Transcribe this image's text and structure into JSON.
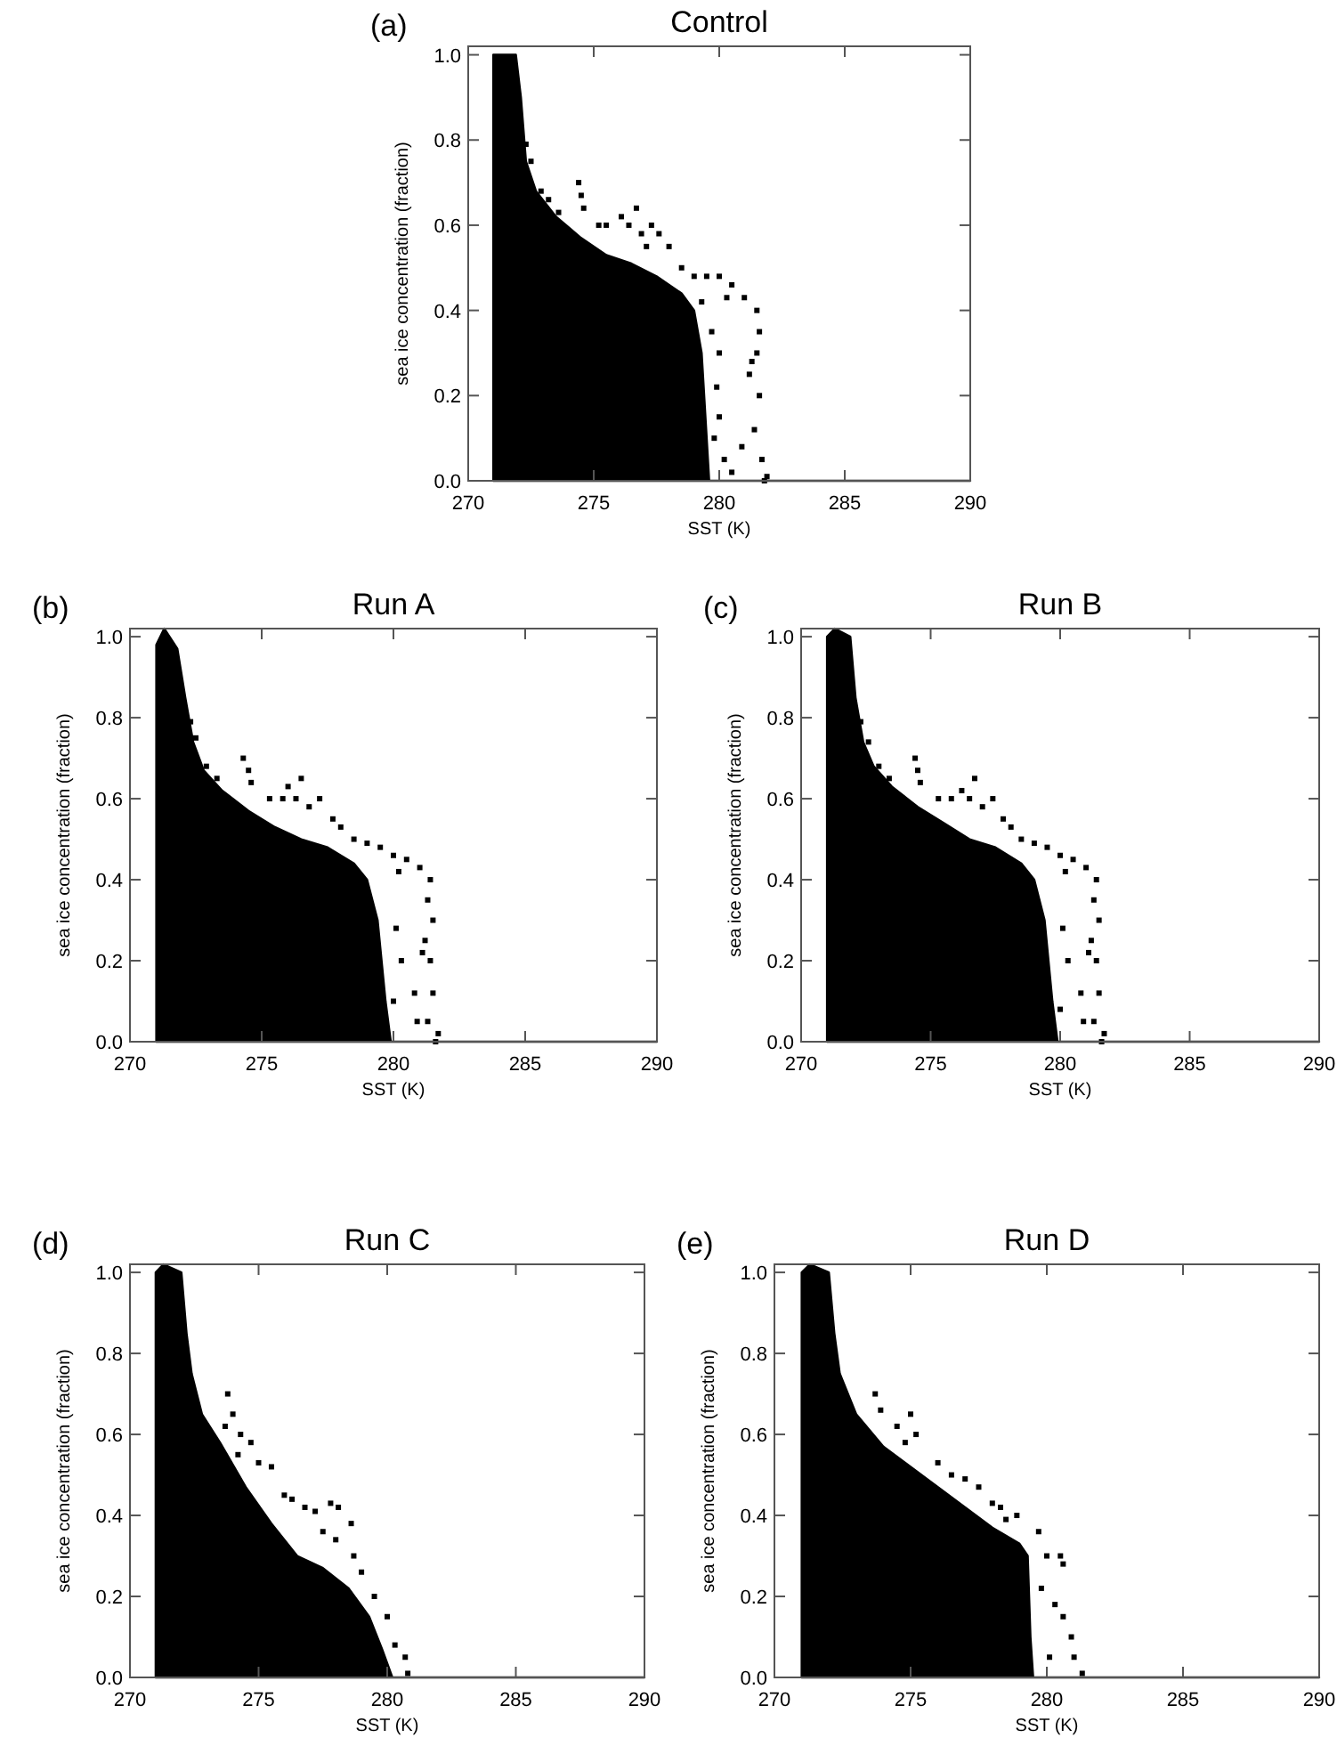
{
  "chart_data": [
    {
      "type": "scatter",
      "title": "Control",
      "annotations": [
        "(a)"
      ],
      "xlabel": "SST (K)",
      "ylabel": "sea ice concentration (fraction)",
      "xlim": [
        270,
        290
      ],
      "xticks": [
        270,
        275,
        280,
        285,
        290
      ],
      "ylim": [
        0,
        1.02
      ],
      "yticks": [
        {
          "value": 0,
          "label": "0.0"
        },
        {
          "value": 0.2,
          "label": "0.2"
        },
        {
          "value": 0.4,
          "label": "0.4"
        },
        {
          "value": 0.6,
          "label": "0.6"
        },
        {
          "value": 0.8,
          "label": "0.8"
        },
        {
          "value": 1,
          "label": "1.0"
        }
      ],
      "series": [
        {
          "type": "area",
          "color": "#000000",
          "x": [
            271.0,
            271.9,
            272.1,
            272.3,
            272.7,
            273.5,
            274.5,
            275.5,
            276.5,
            277.5,
            278.5,
            279.0,
            279.3,
            279.5,
            279.6,
            290
          ],
          "values": [
            1.0,
            1.0,
            0.9,
            0.75,
            0.68,
            0.62,
            0.57,
            0.53,
            0.51,
            0.48,
            0.44,
            0.4,
            0.3,
            0.1,
            0.0,
            0.0
          ]
        },
        {
          "type": "scatter",
          "marker": "square",
          "color": "#000000",
          "x": [
            272.3,
            272.5,
            272.9,
            273.2,
            273.6,
            274.4,
            274.5,
            274.6,
            275.2,
            275.5,
            276.1,
            276.4,
            276.7,
            276.9,
            277.3,
            277.6,
            277.1,
            278.0,
            278.5,
            279.0,
            279.5,
            280.0,
            280.5,
            281.0,
            281.5,
            279.3,
            280.3,
            281.6,
            281.5,
            281.2,
            281.6,
            281.4,
            281.7,
            281.8,
            281.9,
            280.0,
            279.9,
            280.0,
            279.8,
            280.2,
            280.5,
            280.9,
            281.3,
            279.7
          ],
          "values": [
            0.79,
            0.75,
            0.68,
            0.66,
            0.63,
            0.7,
            0.67,
            0.64,
            0.6,
            0.6,
            0.62,
            0.6,
            0.64,
            0.58,
            0.6,
            0.58,
            0.55,
            0.55,
            0.5,
            0.48,
            0.48,
            0.48,
            0.46,
            0.43,
            0.4,
            0.42,
            0.43,
            0.35,
            0.3,
            0.25,
            0.2,
            0.12,
            0.05,
            0.0,
            0.01,
            0.3,
            0.22,
            0.15,
            0.1,
            0.05,
            0.02,
            0.08,
            0.28,
            0.35
          ]
        }
      ]
    },
    {
      "type": "scatter",
      "title": "Run A",
      "annotations": [
        "(b)"
      ],
      "xlabel": "SST (K)",
      "ylabel": "sea ice concentration (fraction)",
      "xlim": [
        270,
        290
      ],
      "xticks": [
        270,
        275,
        280,
        285,
        290
      ],
      "ylim": [
        0,
        1.02
      ],
      "yticks": [
        {
          "value": 0,
          "label": "0.0"
        },
        {
          "value": 0.2,
          "label": "0.2"
        },
        {
          "value": 0.4,
          "label": "0.4"
        },
        {
          "value": 0.6,
          "label": "0.6"
        },
        {
          "value": 0.8,
          "label": "0.8"
        },
        {
          "value": 1,
          "label": "1.0"
        }
      ],
      "series": [
        {
          "type": "area",
          "color": "#000000",
          "x": [
            271.0,
            271.3,
            271.8,
            272.1,
            272.4,
            272.8,
            273.5,
            274.5,
            275.5,
            276.5,
            277.5,
            278.5,
            279.0,
            279.4,
            279.7,
            279.9,
            290
          ],
          "values": [
            0.98,
            1.02,
            0.97,
            0.85,
            0.74,
            0.67,
            0.62,
            0.57,
            0.53,
            0.5,
            0.48,
            0.44,
            0.4,
            0.3,
            0.1,
            0.0,
            0.0
          ]
        },
        {
          "type": "scatter",
          "marker": "square",
          "color": "#000000",
          "x": [
            272.3,
            272.5,
            272.9,
            273.3,
            274.3,
            274.5,
            274.6,
            275.3,
            275.8,
            276.0,
            276.3,
            276.5,
            276.8,
            277.2,
            277.7,
            278.0,
            278.5,
            279.0,
            279.5,
            280.0,
            280.5,
            281.0,
            281.4,
            280.2,
            281.3,
            281.5,
            281.2,
            281.4,
            281.5,
            281.3,
            281.6,
            281.7,
            280.1,
            280.3,
            280.8,
            280.0,
            280.9,
            281.1
          ],
          "values": [
            0.79,
            0.75,
            0.68,
            0.65,
            0.7,
            0.67,
            0.64,
            0.6,
            0.6,
            0.63,
            0.6,
            0.65,
            0.58,
            0.6,
            0.55,
            0.53,
            0.5,
            0.49,
            0.48,
            0.46,
            0.45,
            0.43,
            0.4,
            0.42,
            0.35,
            0.3,
            0.25,
            0.2,
            0.12,
            0.05,
            0.0,
            0.02,
            0.28,
            0.2,
            0.12,
            0.1,
            0.05,
            0.22
          ]
        }
      ]
    },
    {
      "type": "scatter",
      "title": "Run B",
      "annotations": [
        "(c)"
      ],
      "xlabel": "SST (K)",
      "ylabel": "sea ice concentration (fraction)",
      "xlim": [
        270,
        290
      ],
      "xticks": [
        270,
        275,
        280,
        285,
        290
      ],
      "ylim": [
        0,
        1.02
      ],
      "yticks": [
        {
          "value": 0,
          "label": "0.0"
        },
        {
          "value": 0.2,
          "label": "0.2"
        },
        {
          "value": 0.4,
          "label": "0.4"
        },
        {
          "value": 0.6,
          "label": "0.6"
        },
        {
          "value": 0.8,
          "label": "0.8"
        },
        {
          "value": 1,
          "label": "1.0"
        }
      ],
      "series": [
        {
          "type": "area",
          "color": "#000000",
          "x": [
            271.0,
            271.3,
            271.9,
            272.1,
            272.4,
            272.8,
            273.5,
            274.5,
            275.5,
            276.5,
            277.5,
            278.5,
            279.0,
            279.4,
            279.7,
            279.9,
            290
          ],
          "values": [
            1.0,
            1.02,
            1.0,
            0.85,
            0.74,
            0.68,
            0.63,
            0.58,
            0.54,
            0.5,
            0.48,
            0.44,
            0.4,
            0.3,
            0.1,
            0.0,
            0.0
          ]
        },
        {
          "type": "scatter",
          "marker": "square",
          "color": "#000000",
          "x": [
            272.3,
            272.6,
            273.0,
            273.4,
            274.4,
            274.5,
            274.6,
            275.3,
            275.8,
            276.2,
            276.5,
            276.7,
            277.0,
            277.4,
            277.8,
            278.1,
            278.5,
            279.0,
            279.5,
            280.0,
            280.5,
            281.0,
            281.4,
            280.2,
            281.3,
            281.5,
            281.2,
            281.4,
            281.5,
            281.3,
            281.6,
            281.7,
            280.1,
            280.3,
            280.8,
            280.0,
            280.9,
            281.1
          ],
          "values": [
            0.79,
            0.74,
            0.68,
            0.65,
            0.7,
            0.67,
            0.64,
            0.6,
            0.6,
            0.62,
            0.6,
            0.65,
            0.58,
            0.6,
            0.55,
            0.53,
            0.5,
            0.49,
            0.48,
            0.46,
            0.45,
            0.43,
            0.4,
            0.42,
            0.35,
            0.3,
            0.25,
            0.2,
            0.12,
            0.05,
            0.0,
            0.02,
            0.28,
            0.2,
            0.12,
            0.08,
            0.05,
            0.22
          ]
        }
      ]
    },
    {
      "type": "scatter",
      "title": "Run C",
      "annotations": [
        "(d)"
      ],
      "xlabel": "SST (K)",
      "ylabel": "sea ice concentration (fraction)",
      "xlim": [
        270,
        290
      ],
      "xticks": [
        270,
        275,
        280,
        285,
        290
      ],
      "ylim": [
        0,
        1.02
      ],
      "yticks": [
        {
          "value": 0,
          "label": "0.0"
        },
        {
          "value": 0.2,
          "label": "0.2"
        },
        {
          "value": 0.4,
          "label": "0.4"
        },
        {
          "value": 0.6,
          "label": "0.6"
        },
        {
          "value": 0.8,
          "label": "0.8"
        },
        {
          "value": 1,
          "label": "1.0"
        }
      ],
      "series": [
        {
          "type": "area",
          "color": "#000000",
          "x": [
            271.0,
            271.3,
            272.0,
            272.2,
            272.4,
            272.8,
            273.5,
            274.5,
            275.5,
            276.5,
            277.5,
            278.5,
            279.3,
            279.8,
            280.2,
            290
          ],
          "values": [
            1.0,
            1.02,
            1.0,
            0.85,
            0.75,
            0.65,
            0.58,
            0.47,
            0.38,
            0.3,
            0.27,
            0.22,
            0.15,
            0.07,
            0.0,
            0.0
          ]
        },
        {
          "type": "scatter",
          "marker": "square",
          "color": "#000000",
          "x": [
            273.8,
            274.0,
            273.7,
            274.3,
            274.7,
            274.2,
            275.5,
            275.0,
            276.0,
            276.3,
            276.8,
            277.2,
            277.8,
            278.1,
            278.6,
            277.5,
            278.0,
            278.7,
            279.0,
            279.5,
            280.0,
            280.3,
            280.7,
            280.8
          ],
          "values": [
            0.7,
            0.65,
            0.62,
            0.6,
            0.58,
            0.55,
            0.52,
            0.53,
            0.45,
            0.44,
            0.42,
            0.41,
            0.43,
            0.42,
            0.38,
            0.36,
            0.34,
            0.3,
            0.26,
            0.2,
            0.15,
            0.08,
            0.05,
            0.01
          ]
        }
      ]
    },
    {
      "type": "scatter",
      "title": "Run D",
      "annotations": [
        "(e)"
      ],
      "xlabel": "SST (K)",
      "ylabel": "sea ice concentration (fraction)",
      "xlim": [
        270,
        290
      ],
      "xticks": [
        270,
        275,
        280,
        285,
        290
      ],
      "ylim": [
        0,
        1.02
      ],
      "yticks": [
        {
          "value": 0,
          "label": "0.0"
        },
        {
          "value": 0.2,
          "label": "0.2"
        },
        {
          "value": 0.4,
          "label": "0.4"
        },
        {
          "value": 0.6,
          "label": "0.6"
        },
        {
          "value": 0.8,
          "label": "0.8"
        },
        {
          "value": 1,
          "label": "1.0"
        }
      ],
      "series": [
        {
          "type": "area",
          "color": "#000000",
          "x": [
            271.0,
            271.3,
            272.0,
            272.2,
            272.4,
            273.0,
            274.0,
            275.0,
            276.0,
            277.0,
            278.0,
            279.0,
            279.3,
            279.4,
            279.5,
            290
          ],
          "values": [
            1.0,
            1.02,
            1.0,
            0.85,
            0.75,
            0.65,
            0.57,
            0.52,
            0.47,
            0.42,
            0.37,
            0.33,
            0.3,
            0.1,
            0.0,
            0.0
          ]
        },
        {
          "type": "scatter",
          "marker": "square",
          "color": "#000000",
          "x": [
            273.7,
            273.9,
            274.5,
            275.0,
            275.2,
            274.8,
            276.0,
            276.5,
            277.0,
            277.5,
            278.0,
            278.3,
            278.5,
            278.9,
            279.7,
            280.0,
            280.5,
            280.6,
            279.8,
            280.3,
            280.6,
            280.9,
            281.0,
            281.3,
            280.1
          ],
          "values": [
            0.7,
            0.66,
            0.62,
            0.65,
            0.6,
            0.58,
            0.53,
            0.5,
            0.49,
            0.47,
            0.43,
            0.42,
            0.39,
            0.4,
            0.36,
            0.3,
            0.3,
            0.28,
            0.22,
            0.18,
            0.15,
            0.1,
            0.05,
            0.01,
            0.05
          ]
        }
      ]
    }
  ]
}
